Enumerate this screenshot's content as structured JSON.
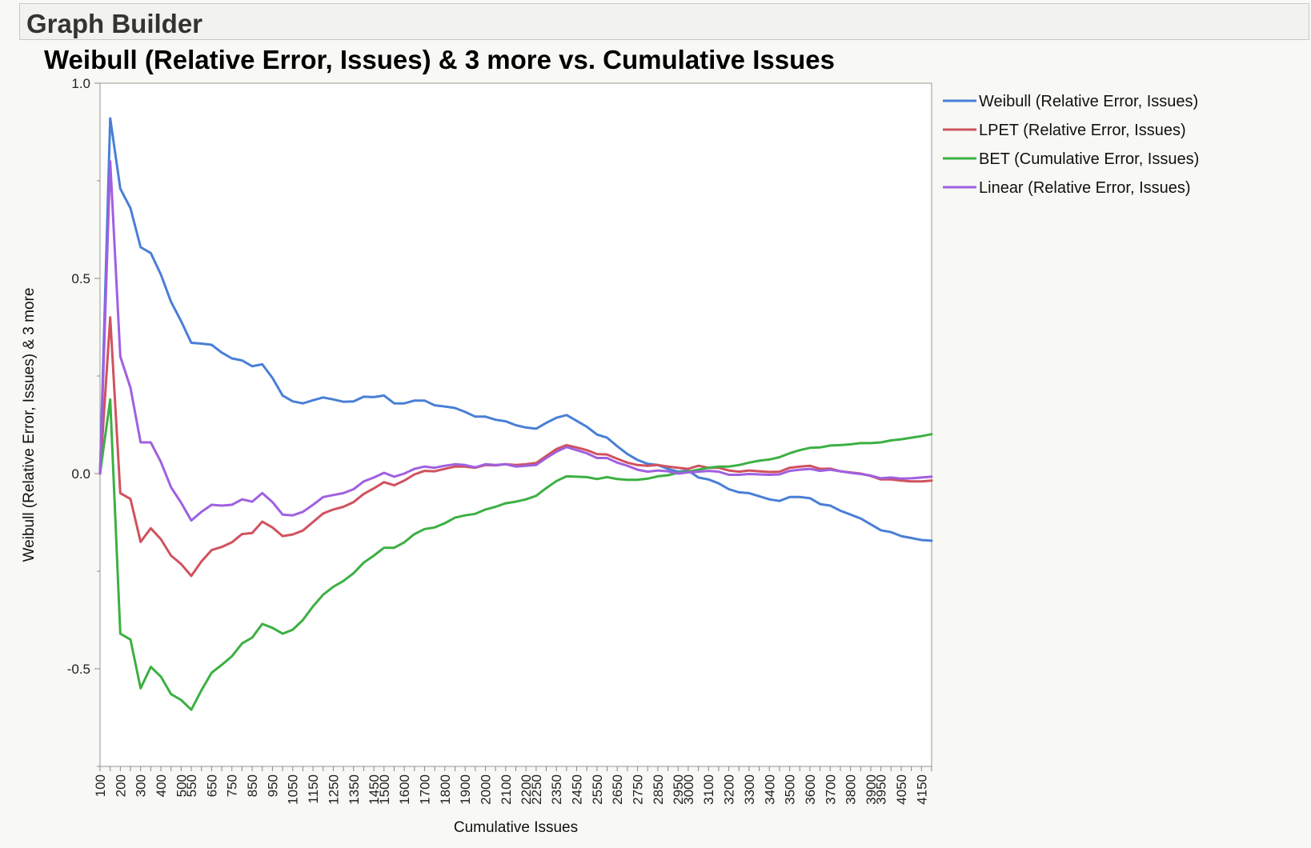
{
  "window": {
    "title": "Graph Builder"
  },
  "chart_data": {
    "type": "line",
    "title": "Weibull (Relative Error, Issues) & 3 more vs. Cumulative Issues",
    "xlabel": "Cumulative Issues",
    "ylabel": "Weibull (Relative Error, Issues) & 3 more",
    "xlim": [
      100,
      4200
    ],
    "ylim": [
      -0.75,
      1.0
    ],
    "y_ticks": [
      -0.5,
      0.0,
      0.5,
      1.0
    ],
    "y_tick_labels": [
      "-0.5",
      "0.0",
      "0.5",
      "1.0"
    ],
    "x_tick_labels": [
      "100",
      "200",
      "300",
      "400",
      "500",
      "550",
      "650",
      "750",
      "850",
      "950",
      "1050",
      "1150",
      "1250",
      "1350",
      "1450",
      "1500",
      "1600",
      "1700",
      "1800",
      "1900",
      "2000",
      "2100",
      "2200",
      "2250",
      "2350",
      "2450",
      "2550",
      "2650",
      "2750",
      "2850",
      "2950",
      "3000",
      "3100",
      "3200",
      "3300",
      "3400",
      "3500",
      "3600",
      "3700",
      "3800",
      "3900",
      "3950",
      "4050",
      "4150"
    ],
    "legend_position": "right",
    "grid": false,
    "x": [
      100,
      150,
      200,
      250,
      300,
      350,
      400,
      450,
      500,
      550,
      600,
      650,
      700,
      750,
      800,
      850,
      900,
      950,
      1000,
      1050,
      1100,
      1150,
      1200,
      1250,
      1300,
      1350,
      1400,
      1450,
      1500,
      1550,
      1600,
      1650,
      1700,
      1750,
      1800,
      1850,
      1900,
      1950,
      2000,
      2050,
      2100,
      2150,
      2200,
      2250,
      2300,
      2350,
      2400,
      2450,
      2500,
      2550,
      2600,
      2650,
      2700,
      2750,
      2800,
      2850,
      2900,
      2950,
      3000,
      3050,
      3100,
      3150,
      3200,
      3250,
      3300,
      3350,
      3400,
      3450,
      3500,
      3550,
      3600,
      3650,
      3700,
      3750,
      3800,
      3850,
      3900,
      3950,
      4000,
      4050,
      4100,
      4150,
      4200
    ],
    "series": [
      {
        "name": "Weibull (Relative Error, Issues)",
        "color": "#4a7fd6",
        "values": [
          0.0,
          0.91,
          0.73,
          0.68,
          0.58,
          0.565,
          0.51,
          0.44,
          0.39,
          0.335,
          0.333,
          0.33,
          0.31,
          0.295,
          0.29,
          0.275,
          0.28,
          0.245,
          0.2,
          0.185,
          0.18,
          0.188,
          0.195,
          0.19,
          0.184,
          0.185,
          0.197,
          0.196,
          0.2,
          0.18,
          0.18,
          0.187,
          0.187,
          0.175,
          0.172,
          0.168,
          0.158,
          0.146,
          0.146,
          0.138,
          0.134,
          0.124,
          0.118,
          0.115,
          0.13,
          0.143,
          0.15,
          0.135,
          0.12,
          0.1,
          0.092,
          0.07,
          0.05,
          0.035,
          0.025,
          0.022,
          0.012,
          0.005,
          0.008,
          -0.01,
          -0.015,
          -0.025,
          -0.04,
          -0.048,
          -0.05,
          -0.058,
          -0.066,
          -0.07,
          -0.06,
          -0.06,
          -0.063,
          -0.078,
          -0.082,
          -0.095,
          -0.105,
          -0.115,
          -0.13,
          -0.145,
          -0.15,
          -0.16,
          -0.165,
          -0.17,
          -0.172
        ]
      },
      {
        "name": "LPET (Relative Error, Issues)",
        "color": "#d0525e",
        "values": [
          0.0,
          0.4,
          -0.05,
          -0.065,
          -0.175,
          -0.14,
          -0.168,
          -0.21,
          -0.232,
          -0.262,
          -0.225,
          -0.196,
          -0.188,
          -0.176,
          -0.155,
          -0.152,
          -0.123,
          -0.138,
          -0.16,
          -0.156,
          -0.146,
          -0.124,
          -0.102,
          -0.092,
          -0.085,
          -0.073,
          -0.052,
          -0.038,
          -0.022,
          -0.03,
          -0.018,
          -0.002,
          0.007,
          0.006,
          0.012,
          0.018,
          0.018,
          0.015,
          0.022,
          0.021,
          0.024,
          0.022,
          0.024,
          0.027,
          0.045,
          0.063,
          0.073,
          0.067,
          0.06,
          0.05,
          0.049,
          0.038,
          0.028,
          0.022,
          0.02,
          0.022,
          0.018,
          0.015,
          0.012,
          0.02,
          0.015,
          0.015,
          0.008,
          0.005,
          0.008,
          0.006,
          0.004,
          0.005,
          0.015,
          0.018,
          0.02,
          0.012,
          0.013,
          0.006,
          0.003,
          0.0,
          -0.006,
          -0.015,
          -0.015,
          -0.018,
          -0.02,
          -0.02,
          -0.018
        ]
      },
      {
        "name": "BET (Cumulative Error, Issues)",
        "color": "#3cb043",
        "values": [
          0.0,
          0.19,
          -0.41,
          -0.425,
          -0.55,
          -0.495,
          -0.52,
          -0.565,
          -0.58,
          -0.605,
          -0.555,
          -0.51,
          -0.49,
          -0.468,
          -0.435,
          -0.42,
          -0.385,
          -0.395,
          -0.41,
          -0.4,
          -0.375,
          -0.34,
          -0.31,
          -0.29,
          -0.275,
          -0.255,
          -0.228,
          -0.21,
          -0.19,
          -0.19,
          -0.176,
          -0.155,
          -0.142,
          -0.138,
          -0.127,
          -0.113,
          -0.107,
          -0.103,
          -0.092,
          -0.085,
          -0.076,
          -0.072,
          -0.066,
          -0.057,
          -0.037,
          -0.019,
          -0.007,
          -0.008,
          -0.009,
          -0.014,
          -0.009,
          -0.014,
          -0.016,
          -0.016,
          -0.013,
          -0.007,
          -0.004,
          0.002,
          0.005,
          0.01,
          0.015,
          0.018,
          0.018,
          0.022,
          0.028,
          0.033,
          0.036,
          0.042,
          0.052,
          0.06,
          0.066,
          0.067,
          0.072,
          0.073,
          0.075,
          0.078,
          0.078,
          0.08,
          0.085,
          0.088,
          0.092,
          0.096,
          0.101
        ]
      },
      {
        "name": "Linear (Relative Error, Issues)",
        "color": "#a060e0",
        "values": [
          0.0,
          0.8,
          0.3,
          0.22,
          0.08,
          0.08,
          0.03,
          -0.035,
          -0.075,
          -0.12,
          -0.098,
          -0.08,
          -0.082,
          -0.08,
          -0.066,
          -0.072,
          -0.05,
          -0.073,
          -0.105,
          -0.107,
          -0.098,
          -0.08,
          -0.06,
          -0.055,
          -0.05,
          -0.04,
          -0.02,
          -0.01,
          0.002,
          -0.008,
          0.0,
          0.012,
          0.018,
          0.015,
          0.02,
          0.024,
          0.022,
          0.016,
          0.024,
          0.022,
          0.024,
          0.018,
          0.02,
          0.022,
          0.04,
          0.056,
          0.068,
          0.06,
          0.052,
          0.04,
          0.04,
          0.028,
          0.02,
          0.01,
          0.005,
          0.008,
          0.006,
          0.0,
          0.003,
          0.005,
          0.007,
          0.005,
          -0.003,
          -0.003,
          -0.001,
          -0.002,
          -0.003,
          -0.002,
          0.007,
          0.01,
          0.012,
          0.007,
          0.01,
          0.006,
          0.002,
          -0.001,
          -0.005,
          -0.012,
          -0.01,
          -0.013,
          -0.012,
          -0.01,
          -0.008
        ]
      }
    ]
  }
}
